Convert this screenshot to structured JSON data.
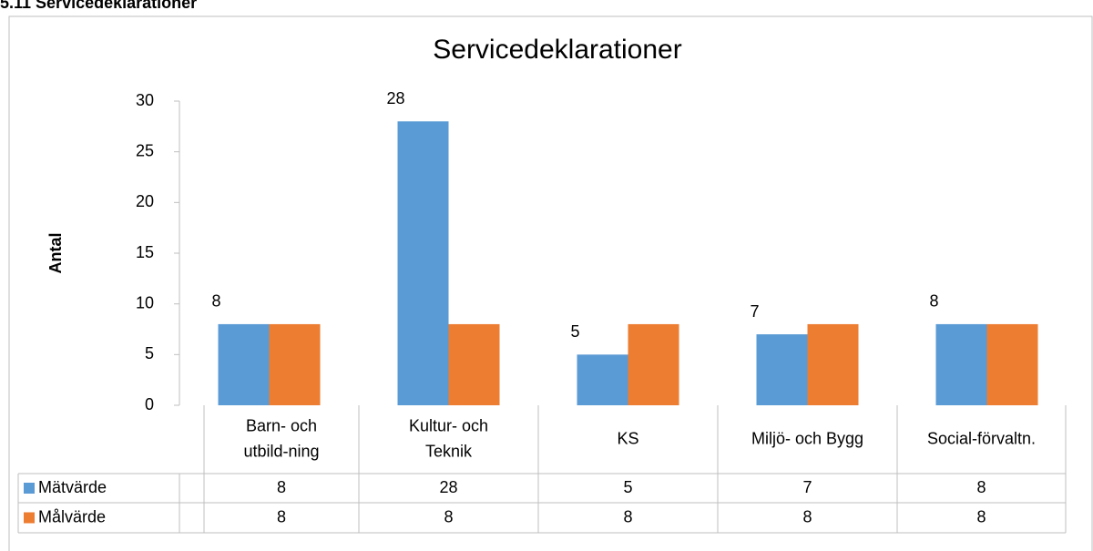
{
  "heading": "5.11 Servicedeklarationer",
  "chart_data": {
    "type": "bar",
    "title": "Servicedeklarationer",
    "y_label": "Antal",
    "categories": [
      "Barn- och\nutbild-ning",
      "Kultur- och\nTeknik",
      "KS",
      "Miljö- och Bygg",
      "Social-förvaltn."
    ],
    "series": [
      {
        "name": "Mätvärde",
        "color": "#5b9bd5",
        "values": [
          8,
          28,
          5,
          7,
          8
        ]
      },
      {
        "name": "Målvärde",
        "color": "#ed7d31",
        "values": [
          8,
          8,
          8,
          8,
          8
        ]
      }
    ],
    "ylim": [
      0,
      30
    ],
    "yticks": [
      0,
      5,
      10,
      15,
      20,
      25,
      30
    ],
    "grid": false,
    "data_table": true
  }
}
